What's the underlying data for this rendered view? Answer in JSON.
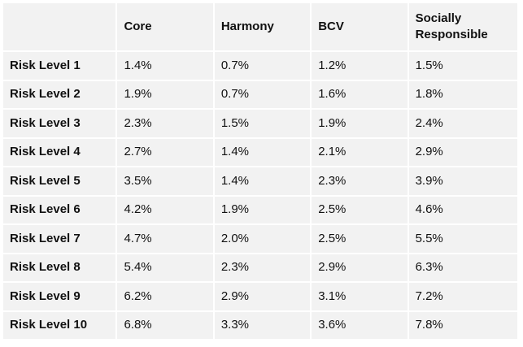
{
  "table": {
    "columns": [
      "",
      "Core",
      "Harmony",
      "BCV",
      "Socially Responsible"
    ],
    "rows": [
      {
        "label": "Risk Level 1",
        "values": [
          "1.4%",
          "0.7%",
          "1.2%",
          "1.5%"
        ]
      },
      {
        "label": "Risk Level 2",
        "values": [
          "1.9%",
          "0.7%",
          "1.6%",
          "1.8%"
        ]
      },
      {
        "label": "Risk Level 3",
        "values": [
          "2.3%",
          "1.5%",
          "1.9%",
          "2.4%"
        ]
      },
      {
        "label": "Risk Level 4",
        "values": [
          "2.7%",
          "1.4%",
          "2.1%",
          "2.9%"
        ]
      },
      {
        "label": "Risk Level 5",
        "values": [
          "3.5%",
          "1.4%",
          "2.3%",
          "3.9%"
        ]
      },
      {
        "label": "Risk Level 6",
        "values": [
          "4.2%",
          "1.9%",
          "2.5%",
          "4.6%"
        ]
      },
      {
        "label": "Risk Level 7",
        "values": [
          "4.7%",
          "2.0%",
          "2.5%",
          "5.5%"
        ]
      },
      {
        "label": "Risk Level 8",
        "values": [
          "5.4%",
          "2.3%",
          "2.9%",
          "6.3%"
        ]
      },
      {
        "label": "Risk Level 9",
        "values": [
          "6.2%",
          "2.9%",
          "3.1%",
          "7.2%"
        ]
      },
      {
        "label": "Risk Level 10",
        "values": [
          "6.8%",
          "3.3%",
          "3.6%",
          "7.8%"
        ]
      }
    ]
  },
  "colors": {
    "cell_background": "#f2f2f2",
    "grid_background": "#ffffff",
    "text": "#111111"
  }
}
